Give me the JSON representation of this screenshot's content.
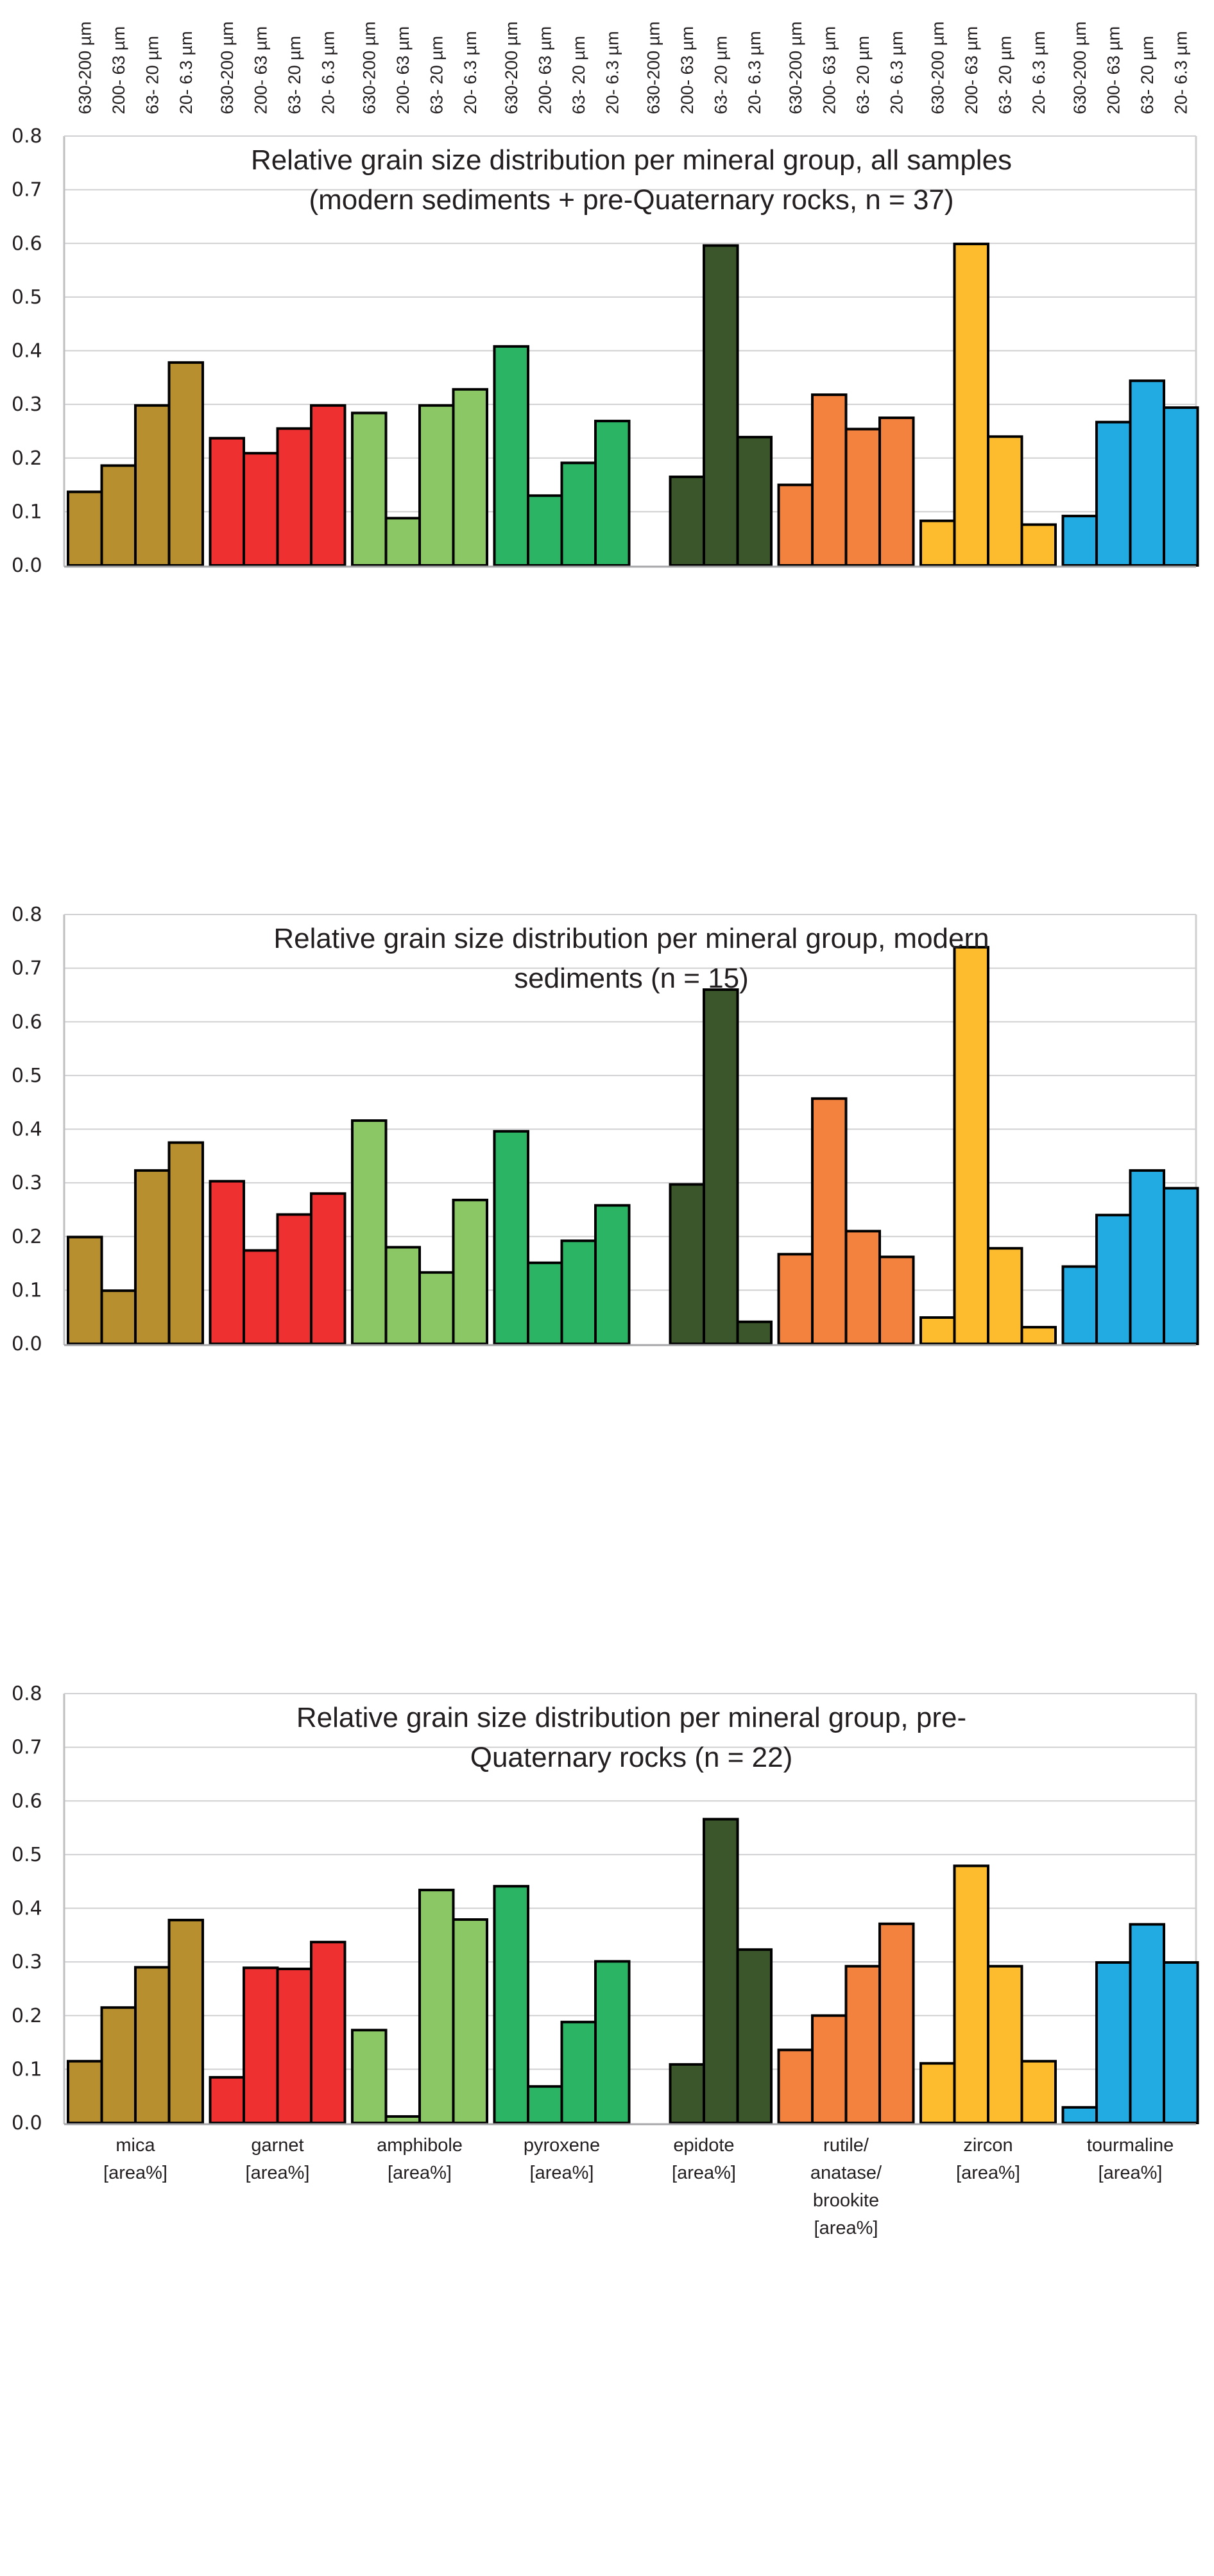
{
  "chart_data": {
    "type": "bar",
    "layout": "three vertically stacked grouped bar panels sharing size-fraction labels on top and mineral-group labels on bottom",
    "size_fractions": [
      "630-200 µm",
      "200- 63 µm",
      "63- 20 µm",
      "20- 6.3 µm"
    ],
    "top_axis_labels": [
      "630-200 µm",
      "200- 63 µm",
      "63- 20 µm",
      "20- 6.3 µm",
      "630-200 µm",
      "200- 63 µm",
      "63- 20 µm",
      "20- 6.3 µm",
      "630-200 µm",
      "200- 63 µm",
      "63- 20 µm",
      "20- 6.3 µm",
      "630-200 µm",
      "200- 63 µm",
      "63- 20 µm",
      "20- 6.3 µm",
      "630-200 µm",
      "200- 63 µm",
      "63- 20 µm",
      "20- 6.3 µm",
      "630-200 µm",
      "200- 63 µm",
      "63- 20 µm",
      "20- 6.3 µm",
      "630-200 µm",
      "200- 63 µm",
      "63- 20 µm",
      "20- 6.3 µm",
      "630-200 µm",
      "200- 63 µm",
      "63- 20 µm",
      "20- 6.3 µm"
    ],
    "categories": [
      {
        "name": "mica",
        "label_lines": [
          "mica",
          "[area%]"
        ],
        "color": "#b88f2e"
      },
      {
        "name": "garnet",
        "label_lines": [
          "garnet",
          "[area%]"
        ],
        "color": "#ee3130"
      },
      {
        "name": "amphibole",
        "label_lines": [
          "amphibole",
          "[area%]"
        ],
        "color": "#8cc765"
      },
      {
        "name": "pyroxene",
        "label_lines": [
          "pyroxene",
          "[area%]"
        ],
        "color": "#2ab464"
      },
      {
        "name": "epidote",
        "label_lines": [
          "epidote",
          "[area%]"
        ],
        "color": "#3a562a"
      },
      {
        "name": "rutile/anatase/brookite",
        "label_lines": [
          "rutile/",
          "anatase/",
          "brookite",
          "[area%]"
        ],
        "color": "#f3823f"
      },
      {
        "name": "zircon",
        "label_lines": [
          "zircon",
          "[area%]"
        ],
        "color": "#fcbc2e"
      },
      {
        "name": "tourmaline",
        "label_lines": [
          "tourmaline",
          "[area%]"
        ],
        "color": "#22aae2"
      }
    ],
    "yticks": [
      "0.0",
      "0.1",
      "0.2",
      "0.3",
      "0.4",
      "0.5",
      "0.6",
      "0.7",
      "0.8"
    ],
    "ylim": [
      0,
      0.8
    ],
    "grid": true,
    "legend": "none",
    "panels": [
      {
        "title_lines": [
          "Relative grain size distribution per mineral group, all samples",
          "(modern sediments + pre-Quaternary rocks, n = 37)"
        ],
        "values": {
          "mica": [
            0.137,
            0.186,
            0.298,
            0.378
          ],
          "garnet": [
            0.237,
            0.209,
            0.255,
            0.298
          ],
          "amphibole": [
            0.284,
            0.088,
            0.298,
            0.328
          ],
          "pyroxene": [
            0.408,
            0.13,
            0.191,
            0.269
          ],
          "epidote": [
            null,
            0.165,
            0.596,
            0.239
          ],
          "rutile/anatase/brookite": [
            0.15,
            0.318,
            0.254,
            0.275
          ],
          "zircon": [
            0.083,
            0.599,
            0.24,
            0.076
          ],
          "tourmaline": [
            0.092,
            0.267,
            0.344,
            0.294
          ]
        }
      },
      {
        "title_lines": [
          "Relative grain size distribution per mineral group, modern",
          "sediments (n = 15)"
        ],
        "values": {
          "mica": [
            0.199,
            0.099,
            0.323,
            0.375
          ],
          "garnet": [
            0.303,
            0.174,
            0.241,
            0.28
          ],
          "amphibole": [
            0.416,
            0.18,
            0.133,
            0.268
          ],
          "pyroxene": [
            0.396,
            0.151,
            0.192,
            0.258
          ],
          "epidote": [
            null,
            0.297,
            0.66,
            0.041
          ],
          "rutile/anatase/brookite": [
            0.167,
            0.457,
            0.21,
            0.162
          ],
          "zircon": [
            0.049,
            0.739,
            0.178,
            0.031
          ],
          "tourmaline": [
            0.144,
            0.24,
            0.323,
            0.29
          ]
        }
      },
      {
        "title_lines": [
          "Relative grain size distribution per mineral group, pre-",
          "Quaternary rocks (n = 22)"
        ],
        "values": {
          "mica": [
            0.115,
            0.215,
            0.29,
            0.378
          ],
          "garnet": [
            0.085,
            0.289,
            0.287,
            0.337
          ],
          "amphibole": [
            0.173,
            0.012,
            0.434,
            0.379
          ],
          "pyroxene": [
            0.441,
            0.068,
            0.188,
            0.301
          ],
          "epidote": [
            null,
            0.109,
            0.566,
            0.323
          ],
          "rutile/anatase/brookite": [
            0.136,
            0.2,
            0.292,
            0.371
          ],
          "zircon": [
            0.111,
            0.479,
            0.292,
            0.115
          ],
          "tourmaline": [
            0.029,
            0.299,
            0.37,
            0.299
          ]
        }
      }
    ]
  }
}
